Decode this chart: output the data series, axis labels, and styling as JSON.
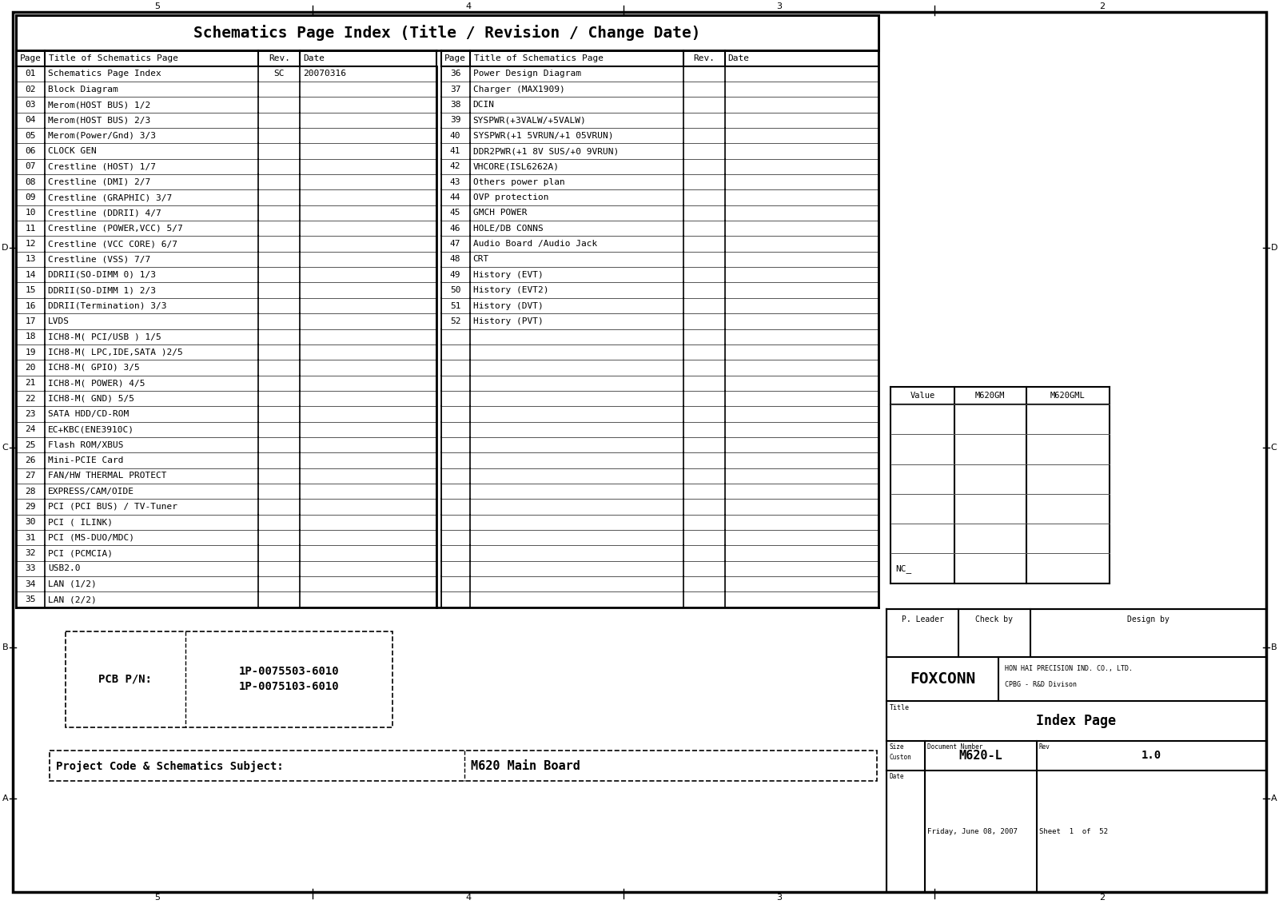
{
  "title": "Schematics Page Index (Title / Revision / Change Date)",
  "left_pages": [
    [
      "01",
      "Schematics Page Index",
      "SC",
      "20070316"
    ],
    [
      "02",
      "Block Diagram",
      "",
      ""
    ],
    [
      "03",
      "Merom(HOST BUS) 1/2",
      "",
      ""
    ],
    [
      "04",
      "Merom(HOST BUS) 2/3",
      "",
      ""
    ],
    [
      "05",
      "Merom(Power/Gnd) 3/3",
      "",
      ""
    ],
    [
      "06",
      "CLOCK GEN",
      "",
      ""
    ],
    [
      "07",
      "Crestline (HOST) 1/7",
      "",
      ""
    ],
    [
      "08",
      "Crestline (DMI) 2/7",
      "",
      ""
    ],
    [
      "09",
      "Crestline (GRAPHIC) 3/7",
      "",
      ""
    ],
    [
      "10",
      "Crestline (DDRII) 4/7",
      "",
      ""
    ],
    [
      "11",
      "Crestline (POWER,VCC) 5/7",
      "",
      ""
    ],
    [
      "12",
      "Crestline (VCC CORE) 6/7",
      "",
      ""
    ],
    [
      "13",
      "Crestline (VSS) 7/7",
      "",
      ""
    ],
    [
      "14",
      "DDRII(SO-DIMM 0) 1/3",
      "",
      ""
    ],
    [
      "15",
      "DDRII(SO-DIMM 1) 2/3",
      "",
      ""
    ],
    [
      "16",
      "DDRII(Termination) 3/3",
      "",
      ""
    ],
    [
      "17",
      "LVDS",
      "",
      ""
    ],
    [
      "18",
      "ICH8-M( PCI/USB ) 1/5",
      "",
      ""
    ],
    [
      "19",
      "ICH8-M( LPC,IDE,SATA )2/5",
      "",
      ""
    ],
    [
      "20",
      "ICH8-M( GPIO) 3/5",
      "",
      ""
    ],
    [
      "21",
      "ICH8-M( POWER) 4/5",
      "",
      ""
    ],
    [
      "22",
      "ICH8-M( GND) 5/5",
      "",
      ""
    ],
    [
      "23",
      "SATA HDD/CD-ROM",
      "",
      ""
    ],
    [
      "24",
      "EC+KBC(ENE3910C)",
      "",
      ""
    ],
    [
      "25",
      "Flash ROM/XBUS",
      "",
      ""
    ],
    [
      "26",
      "Mini-PCIE Card",
      "",
      ""
    ],
    [
      "27",
      "FAN/HW THERMAL PROTECT",
      "",
      ""
    ],
    [
      "28",
      "EXPRESS/CAM/OIDE",
      "",
      ""
    ],
    [
      "29",
      "PCI (PCI BUS) / TV-Tuner",
      "",
      ""
    ],
    [
      "30",
      "PCI ( ILINK)",
      "",
      ""
    ],
    [
      "31",
      "PCI (MS-DUO/MDC)",
      "",
      ""
    ],
    [
      "32",
      "PCI (PCMCIA)",
      "",
      ""
    ],
    [
      "33",
      "USB2.0",
      "",
      ""
    ],
    [
      "34",
      "LAN (1/2)",
      "",
      ""
    ],
    [
      "35",
      "LAN (2/2)",
      "",
      ""
    ]
  ],
  "right_pages": [
    [
      "36",
      "Power Design Diagram",
      "",
      ""
    ],
    [
      "37",
      "Charger (MAX1909)",
      "",
      ""
    ],
    [
      "38",
      "DCIN",
      "",
      ""
    ],
    [
      "39",
      "SYSPWR(+3VALW/+5VALW)",
      "",
      ""
    ],
    [
      "40",
      "SYSPWR(+1 5VRUN/+1 05VRUN)",
      "",
      ""
    ],
    [
      "41",
      "DDR2PWR(+1 8V SUS/+0 9VRUN)",
      "",
      ""
    ],
    [
      "42",
      "VHCORE(ISL6262A)",
      "",
      ""
    ],
    [
      "43",
      "Others power plan",
      "",
      ""
    ],
    [
      "44",
      "OVP protection",
      "",
      ""
    ],
    [
      "45",
      "GMCH POWER",
      "",
      ""
    ],
    [
      "46",
      "HOLE/DB CONNS",
      "",
      ""
    ],
    [
      "47",
      "Audio Board /Audio Jack",
      "",
      ""
    ],
    [
      "48",
      "CRT",
      "",
      ""
    ],
    [
      "49",
      "History (EVT)",
      "",
      ""
    ],
    [
      "50",
      "History (EVT2)",
      "",
      ""
    ],
    [
      "51",
      "History (DVT)",
      "",
      ""
    ],
    [
      "52",
      "History (PVT)",
      "",
      ""
    ],
    [
      "",
      "",
      "",
      ""
    ],
    [
      "",
      "",
      "",
      ""
    ],
    [
      "",
      "",
      "",
      ""
    ],
    [
      "",
      "",
      "",
      ""
    ],
    [
      "",
      "",
      "",
      ""
    ],
    [
      "",
      "",
      "",
      ""
    ],
    [
      "",
      "",
      "",
      ""
    ],
    [
      "",
      "",
      "",
      ""
    ],
    [
      "",
      "",
      "",
      ""
    ],
    [
      "",
      "",
      "",
      ""
    ],
    [
      "",
      "",
      "",
      ""
    ],
    [
      "",
      "",
      "",
      ""
    ],
    [
      "",
      "",
      "",
      ""
    ],
    [
      "",
      "",
      "",
      ""
    ],
    [
      "",
      "",
      "",
      ""
    ],
    [
      "",
      "",
      "",
      ""
    ],
    [
      "",
      "",
      "",
      ""
    ],
    [
      "",
      "",
      "",
      ""
    ],
    [
      "",
      "",
      "",
      ""
    ]
  ],
  "pcb_pn_label": "PCB P/N:",
  "pcb_pn_value": "1P-0075503-6010\n1P-0075103-6010",
  "project_label": "Project Code & Schematics Subject:",
  "project_value": "M620 Main Board",
  "stamp_table_headers": [
    "Value",
    "M620GM",
    "M620GML"
  ],
  "stamp_nc": "NC_",
  "footer_headers": [
    "P. Leader",
    "Check by",
    "Design by"
  ],
  "company": "FOXCONN",
  "company_sub1": "HON HAI PRECISION IND. CO., LTD.",
  "company_sub2": "CPBG - R&D Divison",
  "title_box": "Index Page",
  "doc_number": "M620-L",
  "doc_rev": "1.0",
  "date_str": "Friday, June 08, 2007",
  "sheet_str": "Sheet  1  of  52",
  "bg_color": "#ffffff"
}
